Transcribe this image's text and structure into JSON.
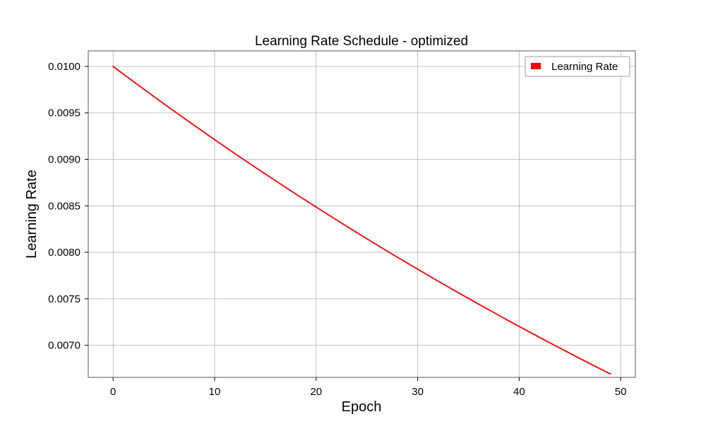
{
  "chart_data": {
    "type": "line",
    "title": "Learning Rate Schedule - optimized",
    "xlabel": "Epoch",
    "ylabel": "Learning Rate",
    "xlim": [
      -2.45,
      51.45
    ],
    "ylim": [
      0.006655,
      0.010167
    ],
    "x_ticks": [
      0,
      10,
      20,
      30,
      40,
      50
    ],
    "x_tick_labels": [
      "0",
      "10",
      "20",
      "30",
      "40",
      "50"
    ],
    "y_ticks": [
      0.007,
      0.0075,
      0.008,
      0.0085,
      0.009,
      0.0095,
      0.01
    ],
    "y_tick_labels": [
      "0.0070",
      "0.0075",
      "0.0080",
      "0.0085",
      "0.0090",
      "0.0095",
      "0.0100"
    ],
    "grid": true,
    "legend_position": "top-right",
    "series": [
      {
        "name": "Learning Rate",
        "color": "#ff0000",
        "x": [
          0,
          1,
          2,
          3,
          4,
          5,
          6,
          7,
          8,
          9,
          10,
          11,
          12,
          13,
          14,
          15,
          16,
          17,
          18,
          19,
          20,
          21,
          22,
          23,
          24,
          25,
          26,
          27,
          28,
          29,
          30,
          31,
          32,
          33,
          34,
          35,
          36,
          37,
          38,
          39,
          40,
          41,
          42,
          43,
          44,
          45,
          46,
          47,
          48,
          49
        ],
        "y": [
          0.01,
          0.009918,
          0.009837,
          0.009757,
          0.009677,
          0.009598,
          0.00952,
          0.009442,
          0.009365,
          0.009288,
          0.009212,
          0.009137,
          0.009062,
          0.008988,
          0.008915,
          0.008842,
          0.00877,
          0.008698,
          0.008627,
          0.008557,
          0.008487,
          0.008418,
          0.008349,
          0.008281,
          0.008213,
          0.008146,
          0.008079,
          0.008013,
          0.007948,
          0.007883,
          0.007819,
          0.007755,
          0.007691,
          0.007629,
          0.007566,
          0.007505,
          0.007443,
          0.007383,
          0.007322,
          0.007262,
          0.007203,
          0.007144,
          0.007086,
          0.007028,
          0.006971,
          0.006914,
          0.006857,
          0.006801,
          0.006746,
          0.006691
        ]
      }
    ]
  }
}
